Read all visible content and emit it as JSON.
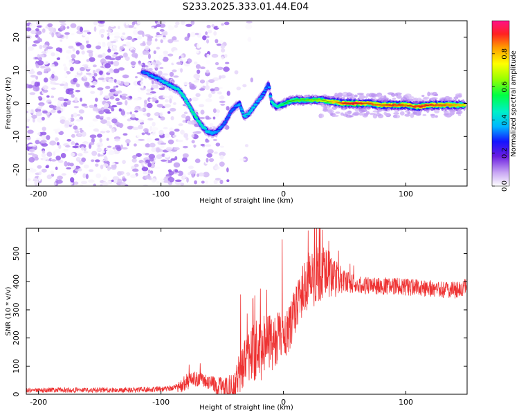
{
  "figure_title": "S233.2025.333.01.44.E04",
  "chart_data": [
    {
      "type": "heatmap",
      "name": "spectrogram",
      "xlabel": "Height of straight line (km)",
      "ylabel": "Frequency (Hz)",
      "xlim": [
        -210,
        150
      ],
      "ylim": [
        -25,
        25
      ],
      "xticks": [
        -200,
        -100,
        0,
        100
      ],
      "yticks": [
        20,
        10,
        0,
        -10,
        -20
      ],
      "colorbar": {
        "label": "Normalized spectral amplitude",
        "range": [
          0,
          1
        ],
        "ticks": [
          0.0,
          0.2,
          0.4,
          0.6,
          0.8
        ]
      },
      "ridge": {
        "description": "dominant frequency track (Hz) vs height (km)",
        "x": [
          -115,
          -105,
          -95,
          -85,
          -78,
          -72,
          -66,
          -62,
          -58,
          -54,
          -48,
          -42,
          -36,
          -32,
          -28,
          -24,
          -20,
          -16,
          -12,
          -10,
          -6,
          -2,
          4,
          10,
          20,
          30,
          40,
          50,
          60,
          70,
          80,
          90,
          100,
          110,
          120,
          130,
          140,
          148
        ],
        "y": [
          9.5,
          8,
          6,
          4,
          0,
          -4,
          -7,
          -8.5,
          -9,
          -8.5,
          -6,
          -2,
          0,
          -4,
          -3,
          -1,
          1,
          3,
          6,
          0.5,
          -1,
          -0.5,
          0.5,
          1,
          1,
          1,
          0.5,
          0,
          0,
          0,
          -0.5,
          -0.5,
          -0.5,
          -1,
          -0.5,
          -0.5,
          -0.5,
          -0.5
        ],
        "amplitude": [
          0.3,
          0.35,
          0.4,
          0.45,
          0.45,
          0.5,
          0.45,
          0.4,
          0.35,
          0.35,
          0.3,
          0.3,
          0.35,
          0.4,
          0.4,
          0.4,
          0.35,
          0.35,
          0.3,
          0.45,
          0.45,
          0.5,
          0.55,
          0.6,
          0.6,
          0.65,
          0.75,
          0.9,
          0.95,
          0.85,
          0.85,
          0.9,
          0.85,
          0.9,
          0.9,
          0.85,
          0.8,
          0.75
        ]
      },
      "noise_field": {
        "description": "scattered low-amplitude speckle over the left region",
        "x_range": [
          -210,
          -45
        ],
        "y_range": [
          -25,
          25
        ],
        "amplitude_range": [
          0.0,
          0.15
        ]
      }
    },
    {
      "type": "line",
      "name": "snr",
      "xlabel": "Height of straight line (km)",
      "ylabel": "SNR (10 * v/v)",
      "xlim": [
        -210,
        150
      ],
      "ylim": [
        0,
        590
      ],
      "xticks": [
        -200,
        -100,
        0,
        100
      ],
      "yticks": [
        0,
        100,
        200,
        300,
        400,
        500
      ],
      "color": "#ee3333",
      "trend": {
        "x": [
          -210,
          -180,
          -150,
          -120,
          -95,
          -85,
          -80,
          -75,
          -70,
          -65,
          -60,
          -55,
          -50,
          -45,
          -40,
          -35,
          -30,
          -25,
          -20,
          -15,
          -10,
          -5,
          0,
          5,
          10,
          15,
          20,
          25,
          30,
          35,
          40,
          45,
          50,
          60,
          70,
          80,
          90,
          100,
          110,
          120,
          130,
          140,
          150
        ],
        "y": [
          15,
          15,
          15,
          15,
          20,
          25,
          40,
          55,
          55,
          50,
          40,
          30,
          25,
          20,
          40,
          80,
          120,
          150,
          160,
          170,
          180,
          200,
          210,
          240,
          300,
          360,
          400,
          420,
          430,
          430,
          420,
          410,
          400,
          390,
          385,
          385,
          385,
          380,
          380,
          375,
          370,
          370,
          380
        ]
      },
      "noise_amplitude": {
        "x": [
          -210,
          -90,
          -80,
          -60,
          -40,
          -20,
          0,
          10,
          25,
          40,
          50,
          70,
          150
        ],
        "y": [
          8,
          10,
          30,
          25,
          60,
          120,
          90,
          80,
          110,
          80,
          40,
          30,
          30
        ]
      },
      "spikes": [
        {
          "x": -35,
          "y": 355
        },
        {
          "x": -25,
          "y": 335
        },
        {
          "x": -1,
          "y": 550
        },
        {
          "x": 32,
          "y": 585
        },
        {
          "x": 37,
          "y": 545
        },
        {
          "x": 45,
          "y": 510
        },
        {
          "x": -77,
          "y": 105
        },
        {
          "x": -68,
          "y": 110
        }
      ]
    }
  ]
}
